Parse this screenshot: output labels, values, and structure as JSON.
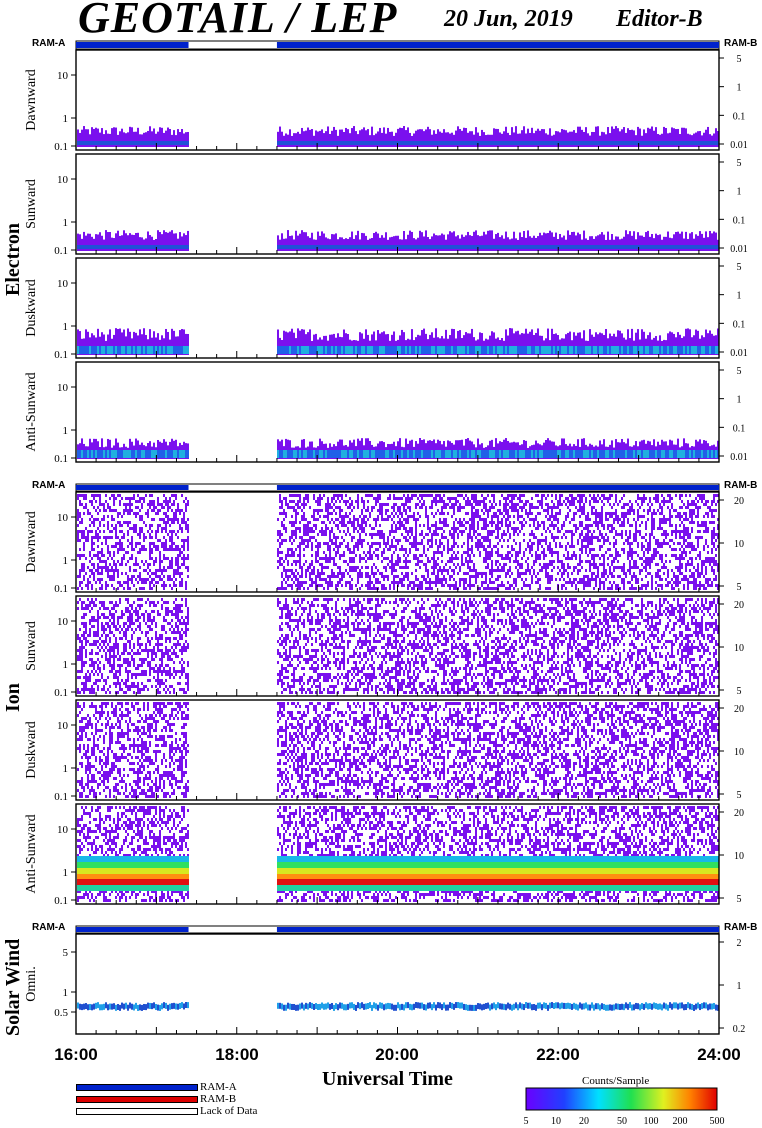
{
  "header": {
    "title": "GEOTAIL / LEP",
    "date": "20 Jun, 2019",
    "editor": "Editor-B"
  },
  "x_axis": {
    "label": "Universal Time",
    "ticks": [
      "16:00",
      "18:00",
      "20:00",
      "22:00",
      "24:00"
    ]
  },
  "groups": {
    "electron": "Electron",
    "ion": "Ion",
    "solar_wind": "Solar Wind"
  },
  "ram_labels": {
    "a": "RAM-A",
    "b": "RAM-B"
  },
  "legend": {
    "items": [
      {
        "label": "RAM-A",
        "color": "#0022cc"
      },
      {
        "label": "RAM-B",
        "color": "#dd0000"
      },
      {
        "label": "Lack of Data",
        "color": "#ffffff"
      }
    ]
  },
  "colorbar": {
    "title": "Counts/Sample",
    "ticks": [
      "5",
      "10",
      "20",
      "50",
      "100",
      "200",
      "500"
    ]
  },
  "chart_data": {
    "type": "heatmap",
    "x_range_hours": [
      16,
      24
    ],
    "data_gap_hours": [
      17.4,
      18.5
    ],
    "panels": [
      {
        "group": "Electron",
        "ylabel": "Dawnward",
        "yticks": [
          "10",
          "1",
          "0.1"
        ],
        "rticks": [
          "5",
          "1",
          "0.1",
          "0.01"
        ]
      },
      {
        "group": "Electron",
        "ylabel": "Sunward",
        "yticks": [
          "10",
          "1",
          "0.1"
        ],
        "rticks": [
          "5",
          "1",
          "0.1",
          "0.01"
        ]
      },
      {
        "group": "Electron",
        "ylabel": "Duskward",
        "yticks": [
          "10",
          "1",
          "0.1"
        ],
        "rticks": [
          "5",
          "1",
          "0.1",
          "0.01"
        ]
      },
      {
        "group": "Electron",
        "ylabel": "Anti-Sunward",
        "yticks": [
          "10",
          "1",
          "0.1"
        ],
        "rticks": [
          "5",
          "1",
          "0.1",
          "0.01"
        ]
      },
      {
        "group": "Ion",
        "ylabel": "Dawnward",
        "yticks": [
          "10",
          "1",
          "0.1"
        ],
        "rticks": [
          "20",
          "10",
          "5"
        ]
      },
      {
        "group": "Ion",
        "ylabel": "Sunward",
        "yticks": [
          "10",
          "1",
          "0.1"
        ],
        "rticks": [
          "20",
          "10",
          "5"
        ]
      },
      {
        "group": "Ion",
        "ylabel": "Duskward",
        "yticks": [
          "10",
          "1",
          "0.1"
        ],
        "rticks": [
          "20",
          "10",
          "5"
        ]
      },
      {
        "group": "Ion",
        "ylabel": "Anti-Sunward",
        "yticks": [
          "10",
          "1",
          "0.1"
        ],
        "rticks": [
          "20",
          "10",
          "5"
        ]
      },
      {
        "group": "Solar Wind",
        "ylabel": "Omni.",
        "yticks": [
          "5",
          "1",
          "0.5"
        ],
        "rticks": [
          "2",
          "1",
          "0.2"
        ]
      }
    ]
  }
}
